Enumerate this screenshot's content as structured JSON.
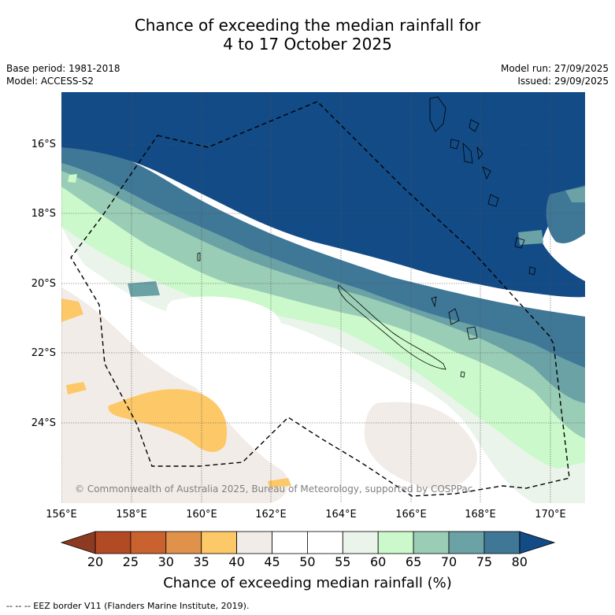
{
  "title": {
    "line1": "Chance of exceeding the median rainfall for",
    "line2": "4 to 17 October 2025"
  },
  "meta": {
    "base_period": "Base period: 1981-2018",
    "model": "Model: ACCESS-S2",
    "model_run": "Model run: 27/09/2025",
    "issued": "Issued: 29/09/2025"
  },
  "latitudes": [
    "16°S",
    "18°S",
    "20°S",
    "22°S",
    "24°S"
  ],
  "longitudes": [
    "156°E",
    "158°E",
    "160°E",
    "162°E",
    "164°E",
    "166°E",
    "168°E",
    "170°E"
  ],
  "copyright": "© Commonwealth of Australia 2025, Bureau of Meteorology, supported by COSPPac",
  "colorbar": {
    "ticks": [
      "20",
      "25",
      "30",
      "35",
      "40",
      "45",
      "50",
      "55",
      "60",
      "65",
      "70",
      "75",
      "80"
    ],
    "colors": [
      "#b24a26",
      "#c9622f",
      "#e0924a",
      "#fcc868",
      "#f2ece8",
      "#ffffff",
      "#ffffff",
      "#eaf4ea",
      "#cbf9cb",
      "#9acdb6",
      "#6aa2a6",
      "#3f7797"
    ],
    "low_color": "#8c3a21",
    "high_color": "#124b86",
    "title": "Chance of exceeding median rainfall (%)"
  },
  "legend": "--  --  -- EEZ border V11 (Flanders Marine Institute, 2019)."
}
